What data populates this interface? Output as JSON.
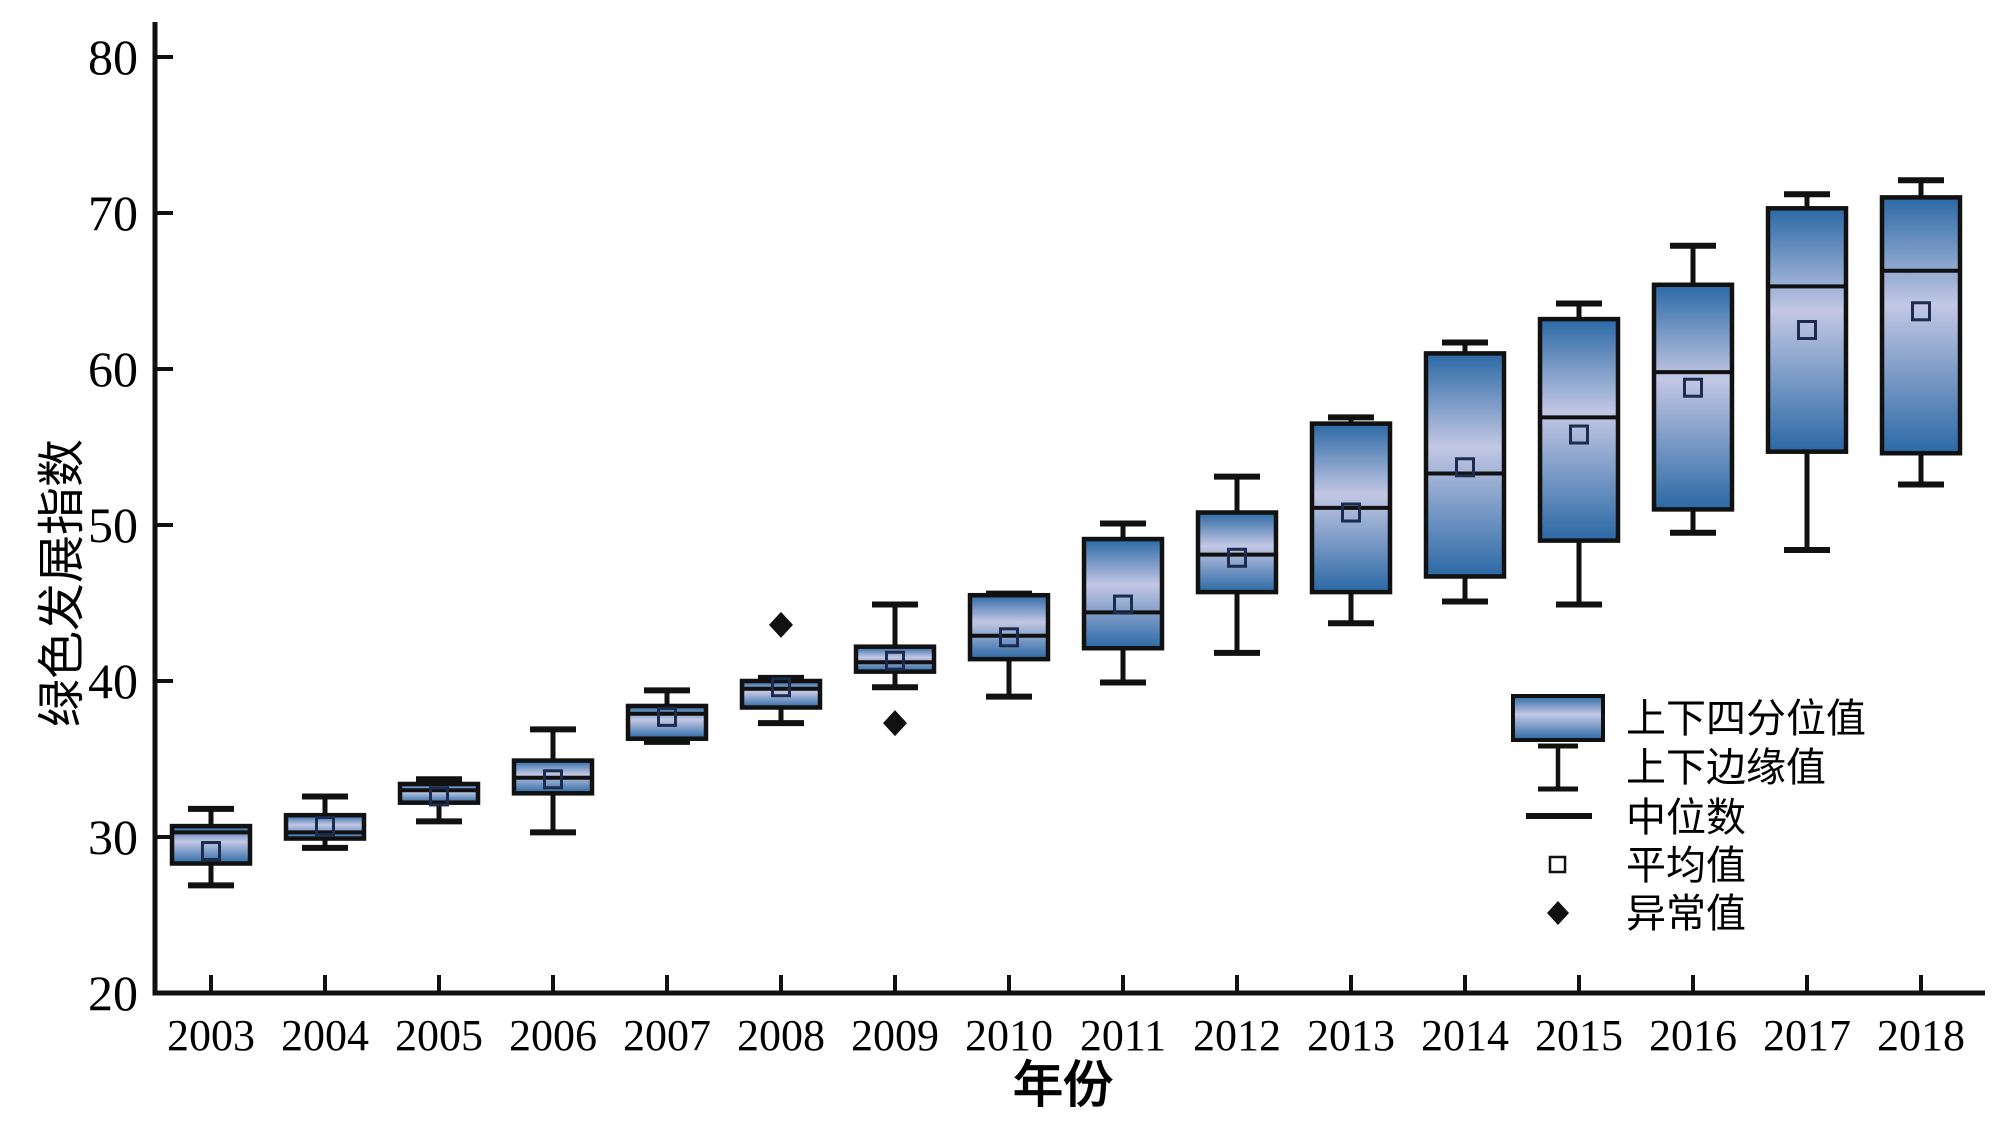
{
  "chart_data": {
    "type": "boxplot",
    "title": "",
    "xlabel": "年份",
    "ylabel": "绿色发展指数",
    "ylim": [
      20,
      80
    ],
    "yticks": [
      20,
      30,
      40,
      50,
      60,
      70,
      80
    ],
    "grid": false,
    "legend_position": "inside-lower-right",
    "categories": [
      "2003",
      "2004",
      "2005",
      "2006",
      "2007",
      "2008",
      "2009",
      "2010",
      "2011",
      "2012",
      "2013",
      "2014",
      "2015",
      "2016",
      "2017",
      "2018"
    ],
    "series": [
      {
        "year": "2003",
        "whisker_low": 26.9,
        "q1": 28.3,
        "median": 30.3,
        "mean": 29.1,
        "q3": 30.7,
        "whisker_high": 31.8,
        "outliers": []
      },
      {
        "year": "2004",
        "whisker_low": 29.3,
        "q1": 29.9,
        "median": 30.3,
        "mean": 30.7,
        "q3": 31.4,
        "whisker_high": 32.6,
        "outliers": []
      },
      {
        "year": "2005",
        "whisker_low": 31.0,
        "q1": 32.2,
        "median": 33.0,
        "mean": 32.6,
        "q3": 33.4,
        "whisker_high": 33.7,
        "outliers": []
      },
      {
        "year": "2006",
        "whisker_low": 30.3,
        "q1": 32.8,
        "median": 33.8,
        "mean": 33.7,
        "q3": 34.9,
        "whisker_high": 36.9,
        "outliers": []
      },
      {
        "year": "2007",
        "whisker_low": 36.1,
        "q1": 36.3,
        "median": 37.9,
        "mean": 37.7,
        "q3": 38.4,
        "whisker_high": 39.4,
        "outliers": []
      },
      {
        "year": "2008",
        "whisker_low": 37.3,
        "q1": 38.3,
        "median": 39.5,
        "mean": 39.6,
        "q3": 40.0,
        "whisker_high": 40.2,
        "outliers": [
          43.6
        ]
      },
      {
        "year": "2009",
        "whisker_low": 39.6,
        "q1": 40.6,
        "median": 41.2,
        "mean": 41.3,
        "q3": 42.2,
        "whisker_high": 44.9,
        "outliers": [
          37.3
        ]
      },
      {
        "year": "2010",
        "whisker_low": 39.0,
        "q1": 41.4,
        "median": 42.9,
        "mean": 42.8,
        "q3": 45.5,
        "whisker_high": 45.6,
        "outliers": []
      },
      {
        "year": "2011",
        "whisker_low": 39.9,
        "q1": 42.1,
        "median": 44.4,
        "mean": 44.9,
        "q3": 49.1,
        "whisker_high": 50.1,
        "outliers": []
      },
      {
        "year": "2012",
        "whisker_low": 41.8,
        "q1": 45.7,
        "median": 48.1,
        "mean": 47.9,
        "q3": 50.8,
        "whisker_high": 53.1,
        "outliers": []
      },
      {
        "year": "2013",
        "whisker_low": 43.7,
        "q1": 45.7,
        "median": 51.1,
        "mean": 50.8,
        "q3": 56.5,
        "whisker_high": 56.9,
        "outliers": []
      },
      {
        "year": "2014",
        "whisker_low": 45.1,
        "q1": 46.7,
        "median": 53.3,
        "mean": 53.7,
        "q3": 61.0,
        "whisker_high": 61.7,
        "outliers": []
      },
      {
        "year": "2015",
        "whisker_low": 44.9,
        "q1": 49.0,
        "median": 56.9,
        "mean": 55.8,
        "q3": 63.2,
        "whisker_high": 64.2,
        "outliers": []
      },
      {
        "year": "2016",
        "whisker_low": 49.5,
        "q1": 51.0,
        "median": 59.8,
        "mean": 58.8,
        "q3": 65.4,
        "whisker_high": 67.9,
        "outliers": []
      },
      {
        "year": "2017",
        "whisker_low": 48.4,
        "q1": 54.7,
        "median": 65.3,
        "mean": 62.5,
        "q3": 70.3,
        "whisker_high": 71.2,
        "outliers": []
      },
      {
        "year": "2018",
        "whisker_low": 52.6,
        "q1": 54.6,
        "median": 66.3,
        "mean": 63.7,
        "q3": 71.0,
        "whisker_high": 72.1,
        "outliers": []
      }
    ],
    "legend": [
      {
        "symbol": "box",
        "label": "上下四分位值"
      },
      {
        "symbol": "whisker",
        "label": "上下边缘值"
      },
      {
        "symbol": "median-line",
        "label": "中位数"
      },
      {
        "symbol": "mean-square",
        "label": "平均值"
      },
      {
        "symbol": "outlier-diamond",
        "label": "异常值"
      }
    ],
    "colors": {
      "box_dark": "#2b69a5",
      "box_light": "#c3c7e4",
      "line": "#111111",
      "mean_marker_stroke": "#1c2b4e"
    }
  }
}
